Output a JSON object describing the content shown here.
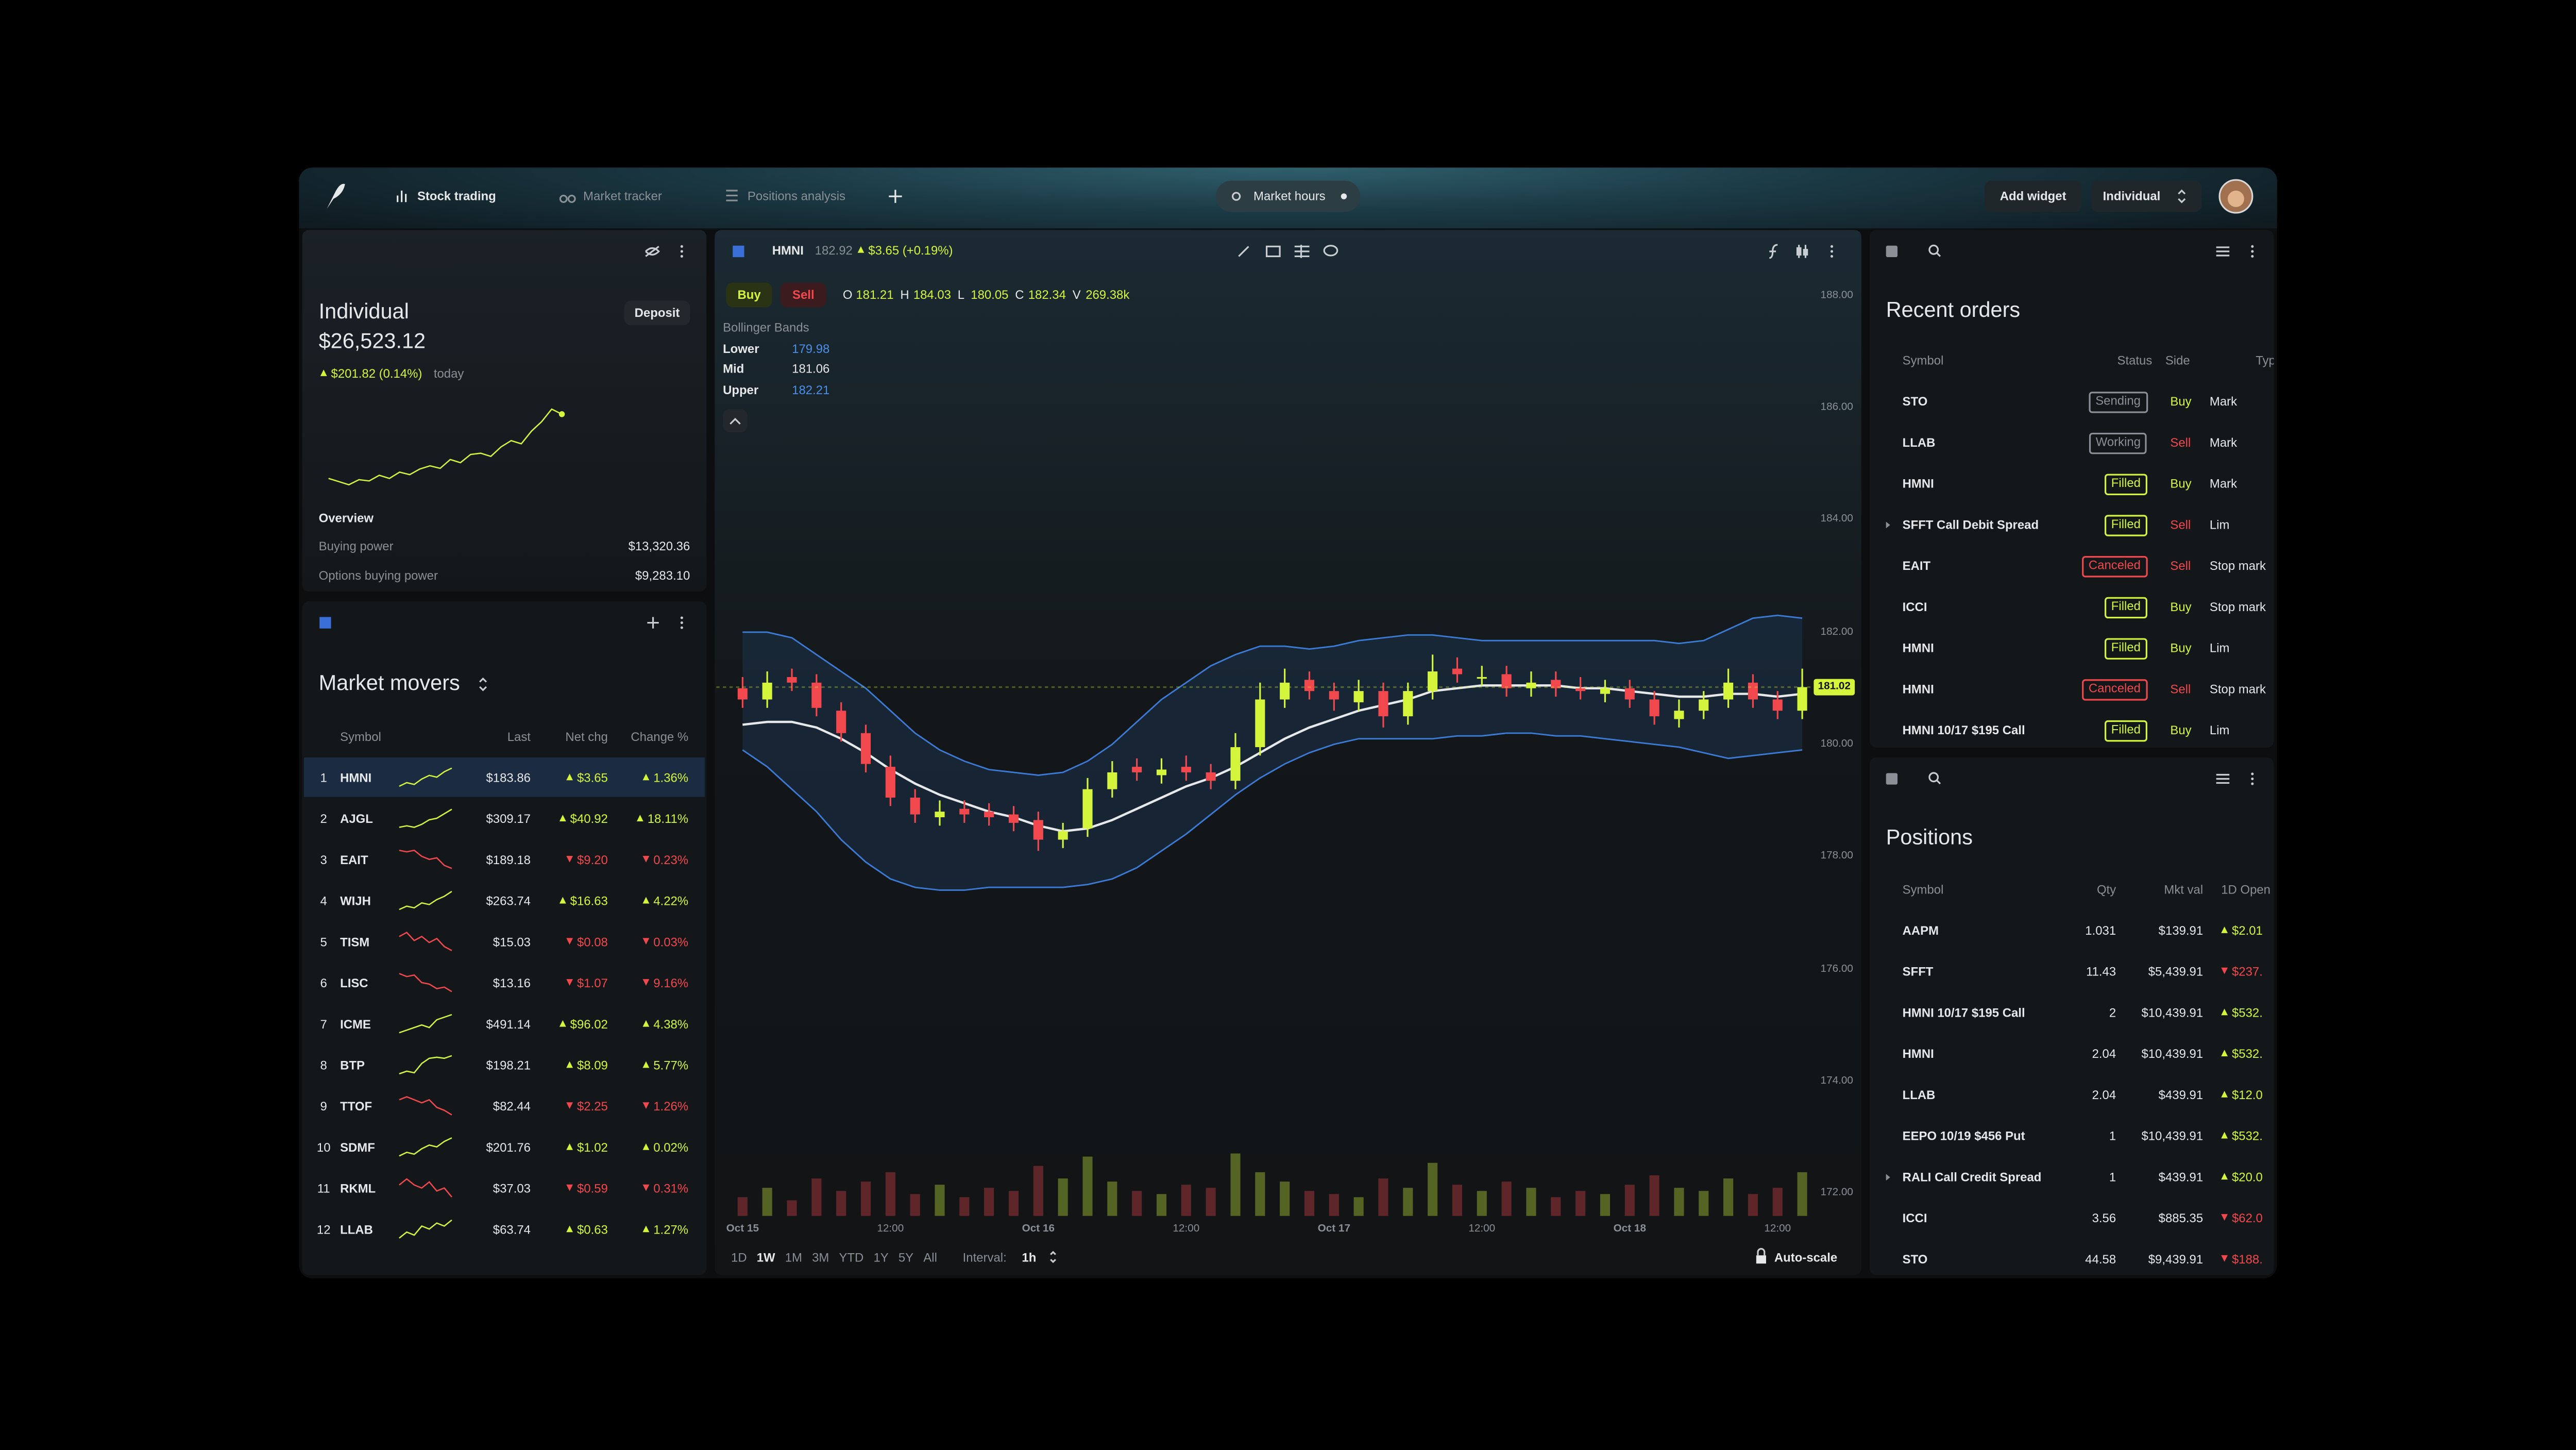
{
  "top_bar": {
    "tabs": [
      "Stock trading",
      "Market tracker",
      "Positions analysis"
    ],
    "market_hours": "Market hours",
    "add_widget": "Add widget",
    "account_select": "Individual"
  },
  "account": {
    "name": "Individual",
    "deposit": "Deposit",
    "balance": "$26,523.12",
    "change": "$201.82 (0.14%)",
    "change_suffix": "today",
    "sparkline": [
      3,
      2.5,
      2,
      2.8,
      2.6,
      3.5,
      3,
      4,
      3.6,
      4.5,
      5,
      4.6,
      6,
      5.5,
      6.8,
      7,
      6.5,
      8,
      9,
      8.5,
      10.5,
      12,
      14,
      13.2
    ],
    "overview_title": "Overview",
    "overview": [
      [
        "Buying power",
        "$13,320.36"
      ],
      [
        "Options buying power",
        "$9,283.10"
      ]
    ]
  },
  "market_movers": {
    "title": "Market movers",
    "columns": [
      "Symbol",
      "Last",
      "Net chg",
      "Change %"
    ],
    "rows": [
      {
        "rank": 1,
        "symbol": "HMNI",
        "last": "$183.86",
        "net_chg": "$3.65",
        "change_pct": "1.36%",
        "direction": "up",
        "spark": [
          3,
          4,
          3.5,
          5,
          6,
          5.5,
          7,
          8
        ]
      },
      {
        "rank": 2,
        "symbol": "AJGL",
        "last": "$309.17",
        "net_chg": "$40.92",
        "change_pct": "18.11%",
        "direction": "up",
        "spark": [
          2,
          2.5,
          2,
          3,
          4.5,
          5,
          6.5,
          8
        ]
      },
      {
        "rank": 3,
        "symbol": "EAIT",
        "last": "$189.18",
        "net_chg": "$9.20",
        "change_pct": "0.23%",
        "direction": "down",
        "spark": [
          8,
          7.5,
          8,
          6,
          5,
          5.5,
          3,
          2
        ]
      },
      {
        "rank": 4,
        "symbol": "WIJH",
        "last": "$263.74",
        "net_chg": "$16.63",
        "change_pct": "4.22%",
        "direction": "up",
        "spark": [
          2,
          3,
          2.5,
          4,
          3.5,
          5,
          6,
          7.5
        ]
      },
      {
        "rank": 5,
        "symbol": "TISM",
        "last": "$15.03",
        "net_chg": "$0.08",
        "change_pct": "0.03%",
        "direction": "down",
        "spark": [
          6,
          6.2,
          5.8,
          6,
          5.7,
          5.9,
          5.5,
          5.3
        ]
      },
      {
        "rank": 6,
        "symbol": "LISC",
        "last": "$13.16",
        "net_chg": "$1.07",
        "change_pct": "9.16%",
        "direction": "down",
        "spark": [
          8,
          7,
          7.5,
          5,
          4.5,
          3,
          3.5,
          2
        ]
      },
      {
        "rank": 7,
        "symbol": "ICME",
        "last": "$491.14",
        "net_chg": "$96.02",
        "change_pct": "4.38%",
        "direction": "up",
        "spark": [
          3,
          3.5,
          4,
          4.5,
          4,
          5.5,
          6,
          6.5
        ]
      },
      {
        "rank": 8,
        "symbol": "BTP",
        "last": "$198.21",
        "net_chg": "$8.09",
        "change_pct": "5.77%",
        "direction": "up",
        "spark": [
          2,
          2.5,
          2.2,
          4,
          5,
          5.2,
          5,
          5.5
        ]
      },
      {
        "rank": 9,
        "symbol": "TTOF",
        "last": "$82.44",
        "net_chg": "$2.25",
        "change_pct": "1.26%",
        "direction": "down",
        "spark": [
          6,
          6.2,
          6,
          5.8,
          6,
          5.5,
          5.3,
          5
        ]
      },
      {
        "rank": 10,
        "symbol": "SDMF",
        "last": "$201.76",
        "net_chg": "$1.02",
        "change_pct": "0.02%",
        "direction": "up",
        "spark": [
          2,
          3,
          2.5,
          4,
          5,
          4.5,
          6,
          7
        ]
      },
      {
        "rank": 11,
        "symbol": "RKML",
        "last": "$37.03",
        "net_chg": "$0.59",
        "change_pct": "0.31%",
        "direction": "down",
        "spark": [
          6,
          6.2,
          6,
          5.9,
          6.1,
          5.8,
          5.9,
          5.6
        ]
      },
      {
        "rank": 12,
        "symbol": "LLAB",
        "last": "$63.74",
        "net_chg": "$0.63",
        "change_pct": "1.27%",
        "direction": "up",
        "spark": [
          4,
          5,
          4.5,
          6,
          5.5,
          6.5,
          6,
          7
        ]
      }
    ]
  },
  "chart_data": {
    "type": "candlestick",
    "symbol": "HMNI",
    "last": 182.92,
    "change": "$3.65 (+0.19%)",
    "buy": "Buy",
    "sell": "Sell",
    "ohlc": [
      {
        "label": "O",
        "value": 181.21
      },
      {
        "label": "H",
        "value": 184.03
      },
      {
        "label": "L",
        "value": 180.05
      },
      {
        "label": "C",
        "value": 182.34
      },
      {
        "label": "V",
        "value": "269.38k"
      }
    ],
    "indicator": "Bollinger Bands",
    "categories": [
      "Oct 15",
      null,
      null,
      null,
      null,
      null,
      "12:00",
      null,
      null,
      null,
      null,
      null,
      "Oct 16",
      null,
      null,
      null,
      null,
      null,
      "12:00",
      null,
      null,
      null,
      null,
      null,
      "Oct 17",
      null,
      null,
      null,
      null,
      null,
      "12:00",
      null,
      null,
      null,
      null,
      null,
      "Oct 18",
      null,
      null,
      null,
      null,
      null,
      "12:00",
      null
    ],
    "open": [
      181.0,
      180.8,
      181.2,
      181.1,
      180.6,
      180.2,
      179.6,
      179.05,
      178.7,
      178.85,
      178.8,
      178.75,
      178.65,
      178.3,
      178.5,
      179.2,
      179.6,
      179.45,
      179.6,
      179.5,
      179.35,
      179.95,
      180.8,
      181.15,
      180.95,
      180.75,
      180.95,
      180.5,
      180.95,
      181.35,
      181.2,
      181.25,
      181.0,
      181.15,
      181.0,
      180.9,
      181.0,
      180.8,
      180.45,
      180.6,
      180.8,
      181.1,
      180.8,
      180.6
    ],
    "high": [
      181.2,
      181.3,
      181.35,
      181.25,
      180.75,
      180.35,
      179.8,
      179.2,
      179.0,
      179.0,
      178.95,
      178.9,
      178.8,
      178.6,
      179.4,
      179.7,
      179.75,
      179.75,
      179.8,
      179.65,
      180.2,
      181.1,
      181.35,
      181.3,
      181.1,
      181.15,
      181.1,
      181.1,
      181.6,
      181.55,
      181.4,
      181.4,
      181.3,
      181.3,
      181.2,
      181.15,
      181.15,
      180.95,
      180.8,
      180.95,
      181.35,
      181.25,
      180.95,
      181.35
    ],
    "low": [
      180.65,
      180.65,
      180.95,
      180.5,
      180.05,
      179.5,
      178.9,
      178.6,
      178.55,
      178.6,
      178.55,
      178.45,
      178.1,
      178.15,
      178.35,
      179.05,
      179.35,
      179.3,
      179.35,
      179.2,
      179.2,
      179.8,
      180.65,
      180.8,
      180.6,
      180.6,
      180.3,
      180.35,
      180.8,
      181.1,
      181.05,
      180.85,
      180.85,
      180.85,
      180.8,
      180.75,
      180.65,
      180.35,
      180.3,
      180.45,
      180.65,
      180.65,
      180.45,
      180.45
    ],
    "close": [
      180.8,
      181.1,
      181.1,
      180.65,
      180.2,
      179.65,
      179.05,
      178.75,
      178.8,
      178.75,
      178.7,
      178.6,
      178.3,
      178.45,
      179.2,
      179.5,
      179.5,
      179.55,
      179.5,
      179.35,
      179.95,
      180.8,
      181.1,
      180.95,
      180.8,
      180.95,
      180.5,
      180.95,
      181.3,
      181.25,
      181.2,
      181.0,
      181.1,
      181.0,
      180.95,
      181.0,
      180.8,
      180.5,
      180.6,
      180.8,
      181.1,
      180.8,
      180.6,
      181.02
    ],
    "volume": [
      30,
      45,
      25,
      60,
      40,
      55,
      70,
      35,
      50,
      30,
      45,
      40,
      80,
      60,
      95,
      55,
      40,
      35,
      50,
      45,
      100,
      70,
      55,
      40,
      35,
      30,
      60,
      45,
      85,
      50,
      40,
      55,
      45,
      30,
      40,
      35,
      50,
      65,
      45,
      40,
      60,
      35,
      45,
      70
    ],
    "series": [
      {
        "name": "Lower",
        "current": 179.98,
        "color": "#3b7bd6",
        "values": [
          179.9,
          179.6,
          179.2,
          178.8,
          178.3,
          177.9,
          177.6,
          177.45,
          177.4,
          177.4,
          177.45,
          177.45,
          177.45,
          177.45,
          177.5,
          177.6,
          177.8,
          178.1,
          178.4,
          178.75,
          179.1,
          179.4,
          179.65,
          179.85,
          180.0,
          180.1,
          180.1,
          180.1,
          180.1,
          180.15,
          180.15,
          180.2,
          180.2,
          180.15,
          180.15,
          180.1,
          180.05,
          180.0,
          179.95,
          179.85,
          179.75,
          179.8,
          179.85,
          179.9
        ]
      },
      {
        "name": "Mid",
        "current": 181.06,
        "color": "#e6e8ea",
        "values": [
          180.35,
          180.4,
          180.4,
          180.3,
          180.1,
          179.85,
          179.55,
          179.3,
          179.1,
          178.95,
          178.8,
          178.7,
          178.55,
          178.45,
          178.5,
          178.65,
          178.85,
          179.05,
          179.25,
          179.4,
          179.6,
          179.85,
          180.1,
          180.3,
          180.45,
          180.6,
          180.7,
          180.8,
          180.95,
          181.0,
          181.05,
          181.05,
          181.05,
          181.05,
          181.0,
          181.0,
          180.95,
          180.9,
          180.85,
          180.85,
          180.9,
          180.9,
          180.85,
          180.9
        ]
      },
      {
        "name": "Upper",
        "current": 182.21,
        "color": "#3b7bd6",
        "values": [
          182.0,
          182.0,
          181.9,
          181.6,
          181.3,
          181.0,
          180.6,
          180.2,
          179.9,
          179.7,
          179.55,
          179.5,
          179.45,
          179.5,
          179.7,
          180.0,
          180.4,
          180.8,
          181.1,
          181.4,
          181.6,
          181.75,
          181.75,
          181.7,
          181.75,
          181.85,
          181.9,
          181.95,
          181.95,
          181.9,
          181.85,
          181.85,
          181.85,
          181.85,
          181.85,
          181.85,
          181.85,
          181.85,
          181.8,
          181.85,
          182.05,
          182.25,
          182.3,
          182.25
        ]
      }
    ],
    "up_color": "#d4f53c",
    "down_color": "#f0484c",
    "ylim": [
      171.5,
      188.5
    ],
    "yticks": [
      {
        "value": 172,
        "label": "172.00"
      },
      {
        "value": 174,
        "label": "174.00"
      },
      {
        "value": 176,
        "label": "176.00"
      },
      {
        "value": 178,
        "label": "178.00"
      },
      {
        "value": 180,
        "label": "180.00"
      },
      {
        "value": 182,
        "label": "182.00"
      },
      {
        "value": 184,
        "label": "184.00"
      },
      {
        "value": 186,
        "label": "186.00"
      },
      {
        "value": 188,
        "label": "188.00"
      }
    ],
    "last_price": 181.02,
    "ranges": [
      "1D",
      "1W",
      "1M",
      "3M",
      "YTD",
      "1Y",
      "5Y",
      "All"
    ],
    "active_range": "1W",
    "interval_label": "Interval:",
    "interval": "1h",
    "autoscale": "Auto-scale"
  },
  "recent_orders": {
    "title": "Recent orders",
    "columns": [
      "Symbol",
      "Status",
      "Side",
      "Typ"
    ],
    "rows": [
      {
        "symbol": "STO",
        "status": "Sending",
        "status_tone": "neutral",
        "side": "Buy",
        "side_tone": "positive",
        "type": "Mark",
        "expandable": false
      },
      {
        "symbol": "LLAB",
        "status": "Working",
        "status_tone": "neutral",
        "side": "Sell",
        "side_tone": "negative",
        "type": "Mark",
        "expandable": false
      },
      {
        "symbol": "HMNI",
        "status": "Filled",
        "status_tone": "positive",
        "side": "Buy",
        "side_tone": "positive",
        "type": "Mark",
        "expandable": false
      },
      {
        "symbol": "SFFT Call Debit Spread",
        "status": "Filled",
        "status_tone": "positive",
        "side": "Sell",
        "side_tone": "negative",
        "type": "Lim",
        "expandable": true
      },
      {
        "symbol": "EAIT",
        "status": "Canceled",
        "status_tone": "negative",
        "side": "Sell",
        "side_tone": "negative",
        "type": "Stop mark",
        "expandable": false
      },
      {
        "symbol": "ICCI",
        "status": "Filled",
        "status_tone": "positive",
        "side": "Buy",
        "side_tone": "positive",
        "type": "Stop mark",
        "expandable": false
      },
      {
        "symbol": "HMNI",
        "status": "Filled",
        "status_tone": "positive",
        "side": "Buy",
        "side_tone": "positive",
        "type": "Lim",
        "expandable": false
      },
      {
        "symbol": "HMNI",
        "status": "Canceled",
        "status_tone": "negative",
        "side": "Sell",
        "side_tone": "negative",
        "type": "Stop mark",
        "expandable": false
      },
      {
        "symbol": "HMNI 10/17 $195 Call",
        "status": "Filled",
        "status_tone": "positive",
        "side": "Buy",
        "side_tone": "positive",
        "type": "Lim",
        "expandable": false
      }
    ]
  },
  "positions": {
    "title": "Positions",
    "columns": [
      "Symbol",
      "Qty",
      "Mkt val",
      "1D Open"
    ],
    "rows": [
      {
        "symbol": "AAPM",
        "qty": 1.031,
        "mkt_val": "$139.91",
        "open_pl": "$2.01",
        "direction": "up",
        "expandable": false
      },
      {
        "symbol": "SFFT",
        "qty": 11.43,
        "mkt_val": "$5,439.91",
        "open_pl": "$237.",
        "direction": "down",
        "expandable": false
      },
      {
        "symbol": "HMNI 10/17 $195 Call",
        "qty": 2,
        "mkt_val": "$10,439.91",
        "open_pl": "$532.",
        "direction": "up",
        "expandable": false
      },
      {
        "symbol": "HMNI",
        "qty": 2.04,
        "mkt_val": "$10,439.91",
        "open_pl": "$532.",
        "direction": "up",
        "expandable": false
      },
      {
        "symbol": "LLAB",
        "qty": 2.04,
        "mkt_val": "$439.91",
        "open_pl": "$12.0",
        "direction": "up",
        "expandable": false
      },
      {
        "symbol": "EEPO 10/19 $456 Put",
        "qty": 1,
        "mkt_val": "$10,439.91",
        "open_pl": "$532.",
        "direction": "up",
        "expandable": false
      },
      {
        "symbol": "RALI Call Credit Spread",
        "qty": 1,
        "mkt_val": "$439.91",
        "open_pl": "$20.0",
        "direction": "up",
        "expandable": true
      },
      {
        "symbol": "ICCI",
        "qty": 3.56,
        "mkt_val": "$885.35",
        "open_pl": "$62.0",
        "direction": "down",
        "expandable": false
      },
      {
        "symbol": "STO",
        "qty": 44.58,
        "mkt_val": "$9,439.91",
        "open_pl": "$188.",
        "direction": "down",
        "expandable": false
      }
    ]
  }
}
